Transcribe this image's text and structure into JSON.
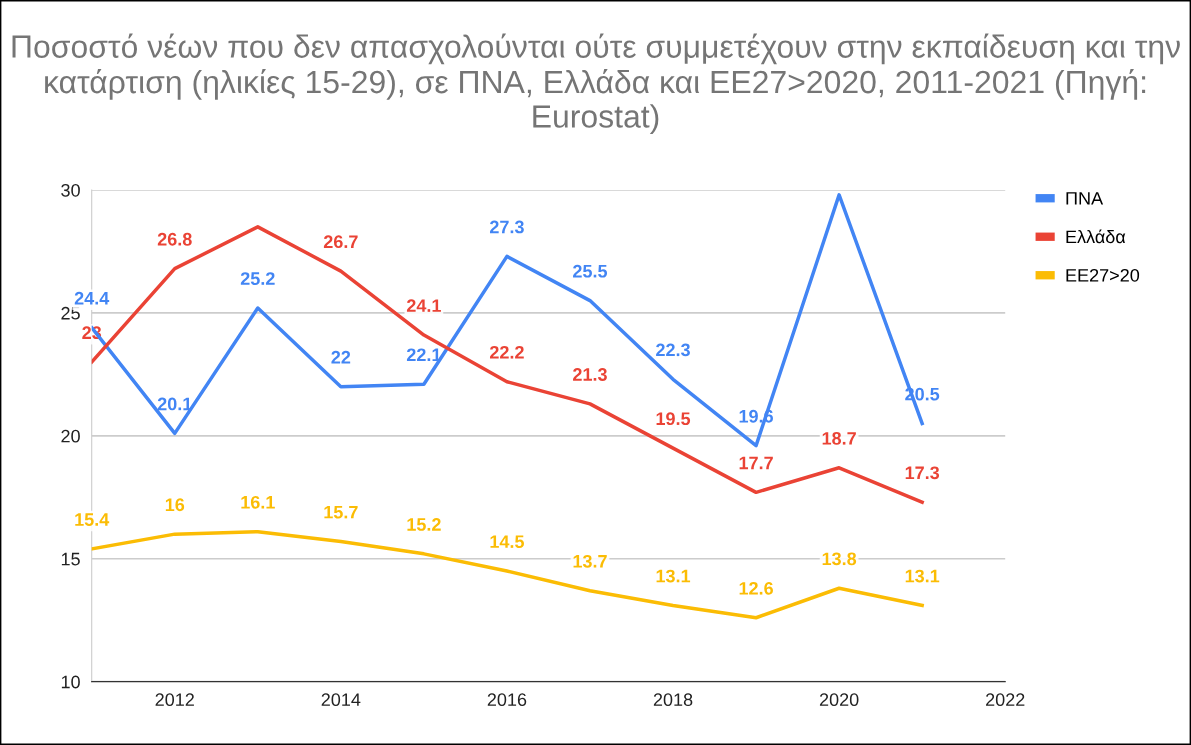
{
  "chart_data": {
    "type": "line",
    "title": "Ποσοστό νέων που δεν απασχολούνται ούτε συμμετέχουν στην εκπαίδευση και την κατάρτιση (ηλικίες 15-29), σε ΠΝΑ, Ελλάδα και ΕΕ27>2020, 2011-2021 (Πηγή: Eurostat)",
    "x": [
      2011,
      2012,
      2013,
      2014,
      2015,
      2016,
      2017,
      2018,
      2019,
      2020,
      2021
    ],
    "series": [
      {
        "name": "ΠΝΑ",
        "color": "#4285f4",
        "values": [
          24.4,
          20.1,
          25.2,
          22,
          22.1,
          27.3,
          25.5,
          22.3,
          19.6,
          29.8,
          20.5
        ],
        "value_labels": [
          "24.4",
          "20.1",
          "25.2",
          "22",
          "22.1",
          "27.3",
          "25.5",
          "22.3",
          "19.6",
          null,
          "20.5"
        ]
      },
      {
        "name": "Ελλάδα",
        "color": "#ea4335",
        "values": [
          23,
          26.8,
          28.5,
          26.7,
          24.1,
          22.2,
          21.3,
          19.5,
          17.7,
          18.7,
          17.3
        ],
        "value_labels": [
          "23",
          "26.8",
          null,
          "26.7",
          "24.1",
          "22.2",
          "21.3",
          "19.5",
          "17.7",
          "18.7",
          "17.3"
        ]
      },
      {
        "name": "ΕΕ27>20",
        "color": "#fbbc04",
        "values": [
          15.4,
          16,
          16.1,
          15.7,
          15.2,
          14.5,
          13.7,
          13.1,
          12.6,
          13.8,
          13.1
        ],
        "value_labels": [
          "15.4",
          "16",
          "16.1",
          "15.7",
          "15.2",
          "14.5",
          "13.7",
          "13.1",
          "12.6",
          "13.8",
          "13.1"
        ]
      }
    ],
    "xlim": [
      2011,
      2022
    ],
    "xticks": [
      2012,
      2014,
      2016,
      2018,
      2020,
      2022
    ],
    "ylim": [
      10,
      30
    ],
    "yticks": [
      10,
      15,
      20,
      25,
      30
    ],
    "grid": "y",
    "legend": "right",
    "marker": "none",
    "line_style": "solid"
  }
}
